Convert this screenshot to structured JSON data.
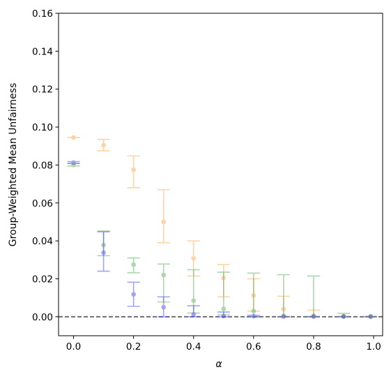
{
  "chart_data": {
    "type": "scatter",
    "title": "",
    "xlabel": "α",
    "ylabel": "Group-Weighted Mean Unfairness",
    "xlim": [
      -0.05,
      1.03
    ],
    "ylim": [
      -0.01,
      0.16
    ],
    "xticks": [
      0.0,
      0.2,
      0.4,
      0.6,
      0.8,
      1.0
    ],
    "xtick_labels": [
      "0.0",
      "0.2",
      "0.4",
      "0.6",
      "0.8",
      "1.0"
    ],
    "yticks": [
      0.0,
      0.02,
      0.04,
      0.06,
      0.08,
      0.1,
      0.12,
      0.14,
      0.16
    ],
    "ytick_labels": [
      "0.00",
      "0.02",
      "0.04",
      "0.06",
      "0.08",
      "0.10",
      "0.12",
      "0.14",
      "0.16"
    ],
    "grid": false,
    "legend": "none",
    "reference_line": {
      "y": 0.0,
      "style": "dashed",
      "color": "#666666"
    },
    "series": [
      {
        "color": "#ffa94d",
        "points": [
          {
            "x": 0.0,
            "y": 0.0945,
            "lo": 0.0945,
            "hi": 0.0945
          },
          {
            "x": 0.1,
            "y": 0.0905,
            "lo": 0.0875,
            "hi": 0.0935
          },
          {
            "x": 0.2,
            "y": 0.0775,
            "lo": 0.068,
            "hi": 0.0848
          },
          {
            "x": 0.3,
            "y": 0.05,
            "lo": 0.039,
            "hi": 0.067
          },
          {
            "x": 0.4,
            "y": 0.0308,
            "lo": 0.0215,
            "hi": 0.04
          },
          {
            "x": 0.5,
            "y": 0.0205,
            "lo": 0.0105,
            "hi": 0.0275
          },
          {
            "x": 0.6,
            "y": 0.0112,
            "lo": 0.003,
            "hi": 0.02
          },
          {
            "x": 0.7,
            "y": 0.004,
            "lo": 0.0,
            "hi": 0.0108
          },
          {
            "x": 0.8,
            "y": 0.0005,
            "lo": 0.0,
            "hi": 0.0035
          },
          {
            "x": 0.9,
            "y": 0.0002,
            "lo": 0.0,
            "hi": 0.0002
          },
          {
            "x": 0.99,
            "y": 0.0001,
            "lo": 0.0,
            "hi": 0.0001
          }
        ]
      },
      {
        "color": "#5cae5c",
        "points": [
          {
            "x": 0.0,
            "y": 0.08,
            "lo": 0.0795,
            "hi": 0.0808
          },
          {
            "x": 0.1,
            "y": 0.0378,
            "lo": 0.0322,
            "hi": 0.0452
          },
          {
            "x": 0.2,
            "y": 0.0275,
            "lo": 0.0232,
            "hi": 0.031
          },
          {
            "x": 0.3,
            "y": 0.022,
            "lo": 0.0078,
            "hi": 0.0278
          },
          {
            "x": 0.4,
            "y": 0.0085,
            "lo": 0.002,
            "hi": 0.0248
          },
          {
            "x": 0.5,
            "y": 0.0042,
            "lo": 0.001,
            "hi": 0.0235
          },
          {
            "x": 0.6,
            "y": 0.003,
            "lo": 0.0,
            "hi": 0.023
          },
          {
            "x": 0.7,
            "y": 0.0005,
            "lo": 0.0,
            "hi": 0.0222
          },
          {
            "x": 0.8,
            "y": 0.0004,
            "lo": 0.0,
            "hi": 0.0215
          },
          {
            "x": 0.9,
            "y": 0.0003,
            "lo": 0.0,
            "hi": 0.0018
          },
          {
            "x": 0.99,
            "y": 0.0001,
            "lo": 0.0,
            "hi": 0.0001
          }
        ]
      },
      {
        "color": "#4a4ae8",
        "points": [
          {
            "x": 0.0,
            "y": 0.0813,
            "lo": 0.0808,
            "hi": 0.0818
          },
          {
            "x": 0.1,
            "y": 0.0338,
            "lo": 0.024,
            "hi": 0.0448
          },
          {
            "x": 0.2,
            "y": 0.0118,
            "lo": 0.0055,
            "hi": 0.0182
          },
          {
            "x": 0.3,
            "y": 0.005,
            "lo": 0.0,
            "hi": 0.0105
          },
          {
            "x": 0.4,
            "y": 0.0012,
            "lo": 0.0,
            "hi": 0.0058
          },
          {
            "x": 0.5,
            "y": 0.0003,
            "lo": 0.0,
            "hi": 0.0025
          },
          {
            "x": 0.6,
            "y": 0.0003,
            "lo": 0.0,
            "hi": 0.0008
          },
          {
            "x": 0.7,
            "y": 0.0001,
            "lo": 0.0,
            "hi": 0.0001
          },
          {
            "x": 0.8,
            "y": 0.0001,
            "lo": 0.0,
            "hi": 0.0001
          },
          {
            "x": 0.9,
            "y": 0.0001,
            "lo": 0.0,
            "hi": 0.0001
          },
          {
            "x": 0.99,
            "y": 0.0001,
            "lo": 0.0,
            "hi": 0.0001
          }
        ]
      }
    ]
  }
}
